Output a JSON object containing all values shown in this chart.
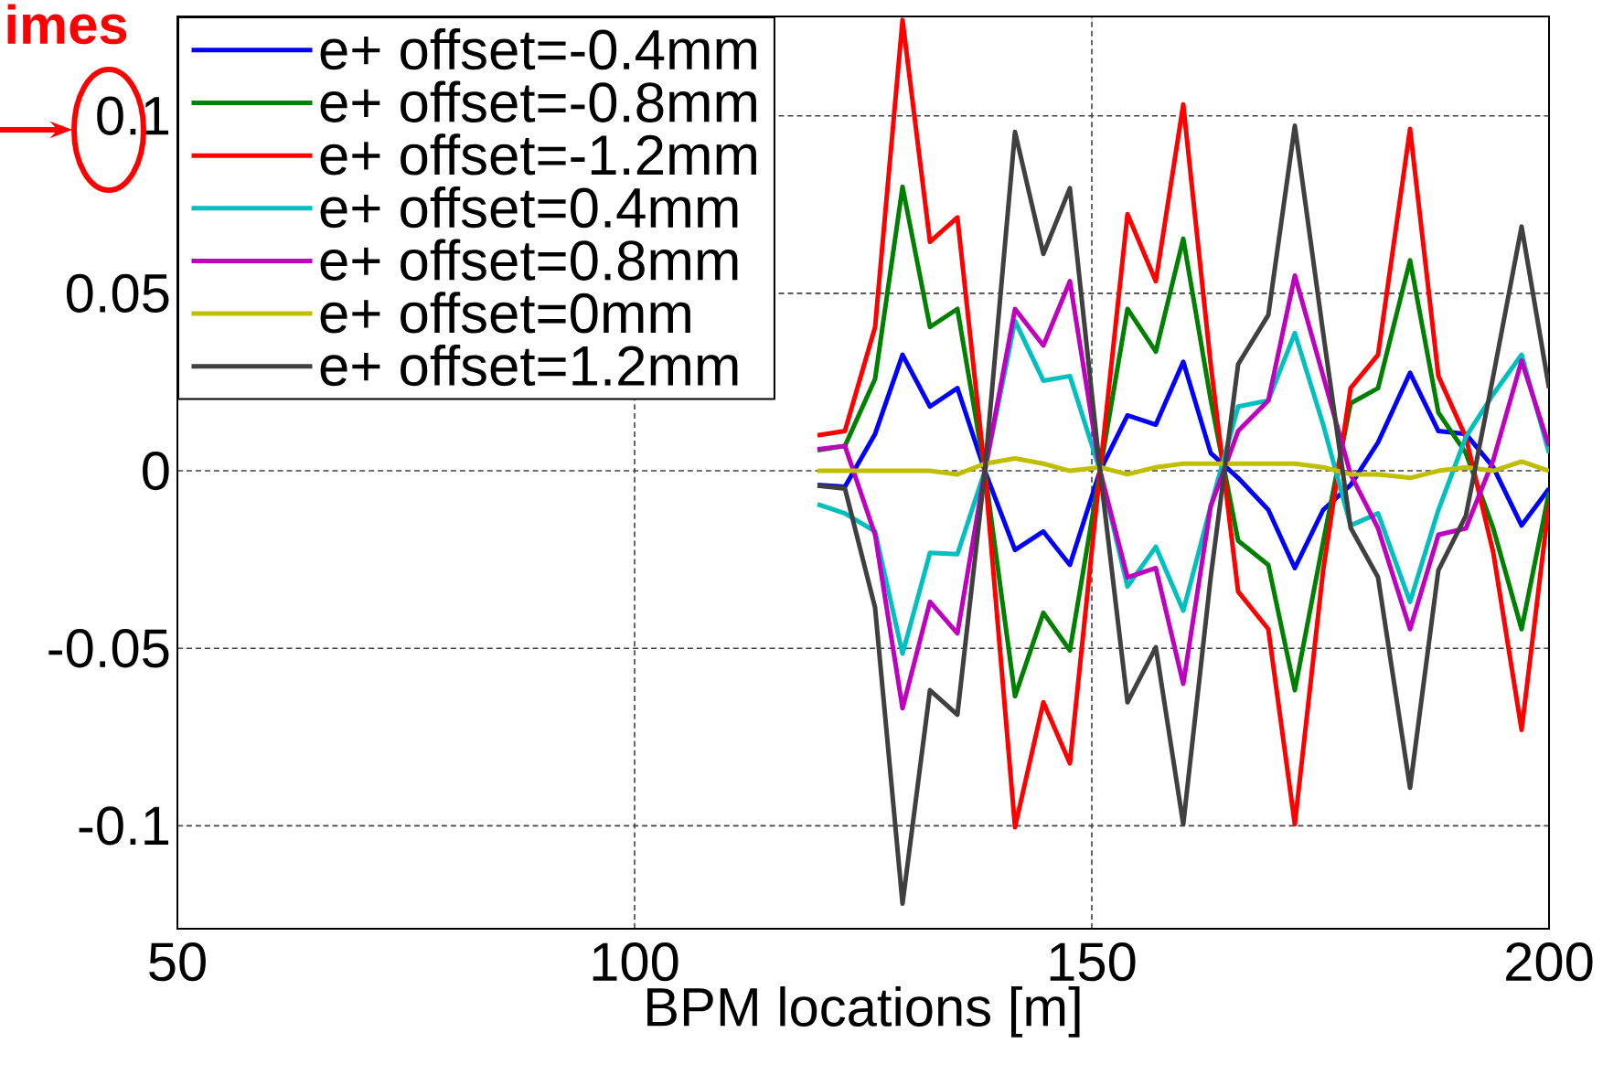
{
  "chart_data": {
    "type": "line",
    "xlabel": "BPM locations [m]",
    "annotations": [
      "imes"
    ],
    "x": [
      120,
      123,
      126.3,
      129.3,
      132.3,
      135.3,
      138.3,
      141.6,
      144.7,
      147.6,
      150.9,
      153.9,
      157,
      160,
      163,
      166,
      169.3,
      172.2,
      175.3,
      178.3,
      181.3,
      184.8,
      187.9,
      190.9,
      193.9,
      197,
      200
    ],
    "series": [
      {
        "name": "e+ offset=-0.4mm",
        "color": "#0000ff",
        "values": [
          -0.004,
          -0.0045,
          0.0104,
          0.0327,
          0.0181,
          0.0233,
          0,
          -0.0223,
          -0.0171,
          -0.0265,
          0,
          0.0156,
          0.013,
          0.0307,
          0.005,
          -0.002,
          -0.011,
          -0.0274,
          -0.011,
          -0.004,
          0.008,
          0.0276,
          0.0112,
          0.0104,
          0.001,
          -0.0154,
          -0.005
        ]
      },
      {
        "name": "e+ offset=-0.8mm",
        "color": "#008000",
        "values": [
          0.0058,
          0.007,
          0.0259,
          0.08,
          0.0405,
          0.0456,
          0,
          -0.0635,
          -0.04,
          -0.0506,
          0,
          0.0456,
          0.0336,
          0.0654,
          0.02,
          -0.0197,
          -0.0265,
          -0.0618,
          -0.02,
          0.019,
          0.0233,
          0.0593,
          0.0164,
          0.005,
          -0.0162,
          -0.0446,
          -0.006
        ]
      },
      {
        "name": "e+ offset=-1.2mm",
        "color": "#ff0000",
        "values": [
          0.01,
          0.0112,
          0.0405,
          0.127,
          0.0645,
          0.0714,
          0,
          -0.1004,
          -0.0652,
          -0.0824,
          0,
          0.0723,
          0.0534,
          0.1032,
          0.03,
          -0.034,
          -0.0446,
          -0.0996,
          -0.028,
          0.0233,
          0.0327,
          0.0963,
          0.0267,
          0.0095,
          -0.023,
          -0.073,
          -0.009
        ]
      },
      {
        "name": "e+ offset=0.4mm",
        "color": "#00bfbf",
        "values": [
          -0.0094,
          -0.012,
          -0.0171,
          -0.0515,
          -0.0231,
          -0.0235,
          0,
          0.0422,
          0.0254,
          0.0267,
          0,
          -0.0326,
          -0.0214,
          -0.0394,
          -0.01,
          0.0181,
          0.0198,
          0.0388,
          0.013,
          -0.0154,
          -0.012,
          -0.0369,
          -0.011,
          0.0095,
          0.0216,
          0.0327,
          0.005
        ]
      },
      {
        "name": "e+ offset=0.8mm",
        "color": "#bf00bf",
        "values": [
          0.0061,
          0.007,
          -0.018,
          -0.0669,
          -0.0369,
          -0.0458,
          0,
          0.0456,
          0.0353,
          0.0534,
          0,
          -0.03,
          -0.0274,
          -0.06,
          -0.01,
          0.0112,
          0.0198,
          0.055,
          0.0267,
          -0.001,
          -0.0162,
          -0.0446,
          -0.018,
          -0.0162,
          0.003,
          0.031,
          0.007
        ]
      },
      {
        "name": "e+ offset=0mm",
        "color": "#bfbf00",
        "values": [
          0,
          0,
          0,
          0,
          0,
          -0.001,
          0.002,
          0.0035,
          0.002,
          0,
          0.001,
          -0.001,
          0.001,
          0.002,
          0.002,
          0.002,
          0.002,
          0.002,
          0.001,
          -0.001,
          -0.001,
          -0.002,
          0,
          0.001,
          0,
          0.0026,
          0
        ]
      },
      {
        "name": "e+ offset=1.2mm",
        "color": "#404040",
        "values": [
          -0.0042,
          -0.005,
          -0.0386,
          -0.1219,
          -0.0618,
          -0.0687,
          0,
          0.0955,
          0.0611,
          0.0796,
          0,
          -0.0652,
          -0.0497,
          -0.0996,
          -0.03,
          0.03,
          0.0439,
          0.0972,
          0.0388,
          -0.016,
          -0.03,
          -0.0893,
          -0.028,
          -0.0127,
          0.0267,
          0.0688,
          0.0233
        ]
      }
    ],
    "xlim": [
      50,
      200
    ],
    "ylim": [
      -0.129,
      0.128
    ],
    "xticks": [
      50,
      100,
      150,
      200
    ],
    "yticks": [
      -0.1,
      -0.05,
      0,
      0.05,
      0.1
    ],
    "grid": true,
    "legend": "top left",
    "line_style": "solid"
  }
}
